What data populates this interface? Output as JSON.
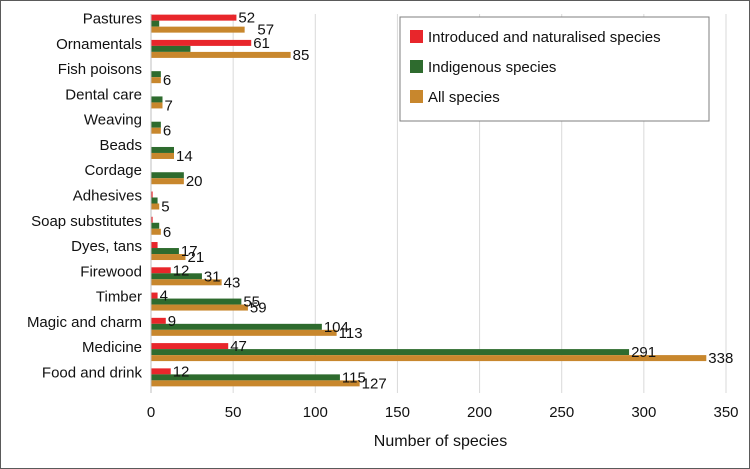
{
  "chart_data": {
    "type": "bar",
    "orientation": "horizontal",
    "categories": [
      "Pastures",
      "Ornamentals",
      "Fish poisons",
      "Dental care",
      "Weaving",
      "Beads",
      "Cordage",
      "Adhesives",
      "Soap substitutes",
      "Dyes, tans",
      "Firewood",
      "Timber",
      "Magic and charm",
      "Medicine",
      "Food and drink"
    ],
    "series": [
      {
        "name": "Introduced and naturalised species",
        "color": "#e8262b",
        "values": [
          52,
          61,
          0,
          0,
          0,
          0,
          0,
          1,
          1,
          4,
          12,
          4,
          9,
          47,
          12
        ],
        "labels": [
          "52",
          "61",
          "",
          "",
          "",
          "",
          "",
          "",
          "",
          "",
          "12",
          "4",
          "9",
          "47",
          "12"
        ]
      },
      {
        "name": "Indigenous species",
        "color": "#2e6b2e",
        "values": [
          5,
          24,
          6,
          7,
          6,
          14,
          20,
          4,
          5,
          17,
          31,
          55,
          104,
          291,
          115
        ],
        "labels": [
          "",
          "",
          "",
          "",
          "",
          "",
          "",
          "",
          "",
          "17",
          "31",
          "55",
          "104",
          "291",
          "115"
        ]
      },
      {
        "name": "All species",
        "color": "#c8872d",
        "values": [
          57,
          85,
          6,
          7,
          6,
          14,
          20,
          5,
          6,
          21,
          43,
          59,
          113,
          338,
          127
        ],
        "labels": [
          "57",
          "85",
          "6",
          "7",
          "6",
          "14",
          "20",
          "5",
          "6",
          "21",
          "43",
          "59",
          "113",
          "338",
          "127"
        ]
      }
    ],
    "xlabel": "Number of species",
    "ylabel": "",
    "title": "",
    "xlim": [
      0,
      350
    ],
    "xticks": [
      0,
      50,
      100,
      150,
      200,
      250,
      300,
      350
    ],
    "grid": "vertical",
    "legend_position": "top-right"
  }
}
